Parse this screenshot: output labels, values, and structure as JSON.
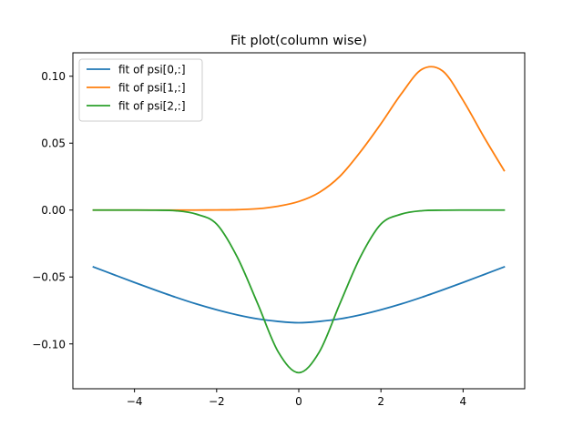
{
  "chart_data": {
    "type": "line",
    "title": "Fit plot(column wise)",
    "xlabel": "",
    "ylabel": "",
    "xlim": [
      -5.5,
      5.5
    ],
    "ylim": [
      -0.1335,
      0.1175
    ],
    "grid": false,
    "legend_position": "top-left",
    "x_ticks": [
      -4,
      -2,
      0,
      2,
      4
    ],
    "x_tick_labels": [
      "−4",
      "−2",
      "0",
      "2",
      "4"
    ],
    "y_ticks": [
      -0.1,
      -0.05,
      0.0,
      0.05,
      0.1
    ],
    "y_tick_labels": [
      "−0.10",
      "−0.05",
      "0.00",
      "0.05",
      "0.10"
    ],
    "x": [
      -5,
      -4.5,
      -4,
      -3.5,
      -3,
      -2.5,
      -2,
      -1.5,
      -1,
      -0.5,
      0,
      0.5,
      1,
      1.5,
      2,
      2.5,
      3,
      3.5,
      4,
      4.5,
      5
    ],
    "series": [
      {
        "name": "fit of psi[0,:]",
        "color": "#1f77b4",
        "values": [
          -0.0425,
          -0.0483,
          -0.0541,
          -0.0597,
          -0.0651,
          -0.0701,
          -0.0745,
          -0.0783,
          -0.0813,
          -0.0832,
          -0.0842,
          -0.0832,
          -0.0813,
          -0.0783,
          -0.0745,
          -0.0701,
          -0.0651,
          -0.0597,
          -0.0541,
          -0.0483,
          -0.0425
        ]
      },
      {
        "name": "fit of psi[1,:]",
        "color": "#ff7f0e",
        "values": [
          0.0,
          0.0,
          0.0,
          0.0,
          0.0,
          0.0,
          0.0001,
          0.0003,
          0.001,
          0.0029,
          0.0064,
          0.0132,
          0.0252,
          0.0435,
          0.0645,
          0.087,
          0.1052,
          0.104,
          0.082,
          0.055,
          0.0295
        ]
      },
      {
        "name": "fit of psi[2,:]",
        "color": "#2ca02c",
        "values": [
          0.0,
          0.0,
          0.0,
          -0.0001,
          -0.0005,
          -0.003,
          -0.0105,
          -0.035,
          -0.07,
          -0.106,
          -0.1215,
          -0.106,
          -0.07,
          -0.035,
          -0.0105,
          -0.003,
          -0.0005,
          -0.0001,
          0.0,
          0.0,
          0.0
        ]
      }
    ]
  }
}
